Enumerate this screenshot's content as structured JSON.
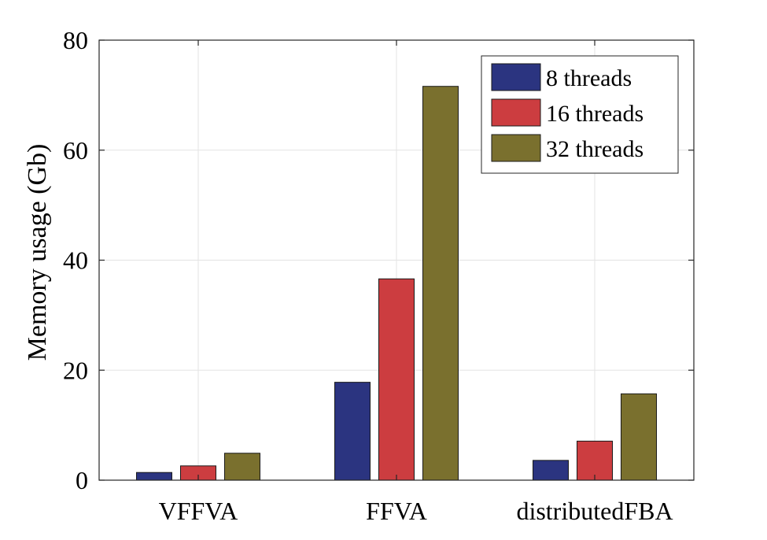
{
  "chart_data": {
    "type": "bar",
    "categories": [
      "VFFVA",
      "FFVA",
      "distributedFBA"
    ],
    "series": [
      {
        "name": "8 threads",
        "values": [
          1.4,
          17.8,
          3.6
        ],
        "color": "#2b3480"
      },
      {
        "name": "16 threads",
        "values": [
          2.6,
          36.6,
          7.1
        ],
        "color": "#cc3d40"
      },
      {
        "name": "32 threads",
        "values": [
          4.9,
          71.6,
          15.7
        ],
        "color": "#7a702e"
      }
    ],
    "ylabel": "Memory usage (Gb)",
    "xlabel": "",
    "ylim": [
      0,
      80
    ],
    "yticks": [
      0,
      20,
      40,
      60,
      80
    ],
    "grid": true,
    "legend_position": "top-right"
  }
}
